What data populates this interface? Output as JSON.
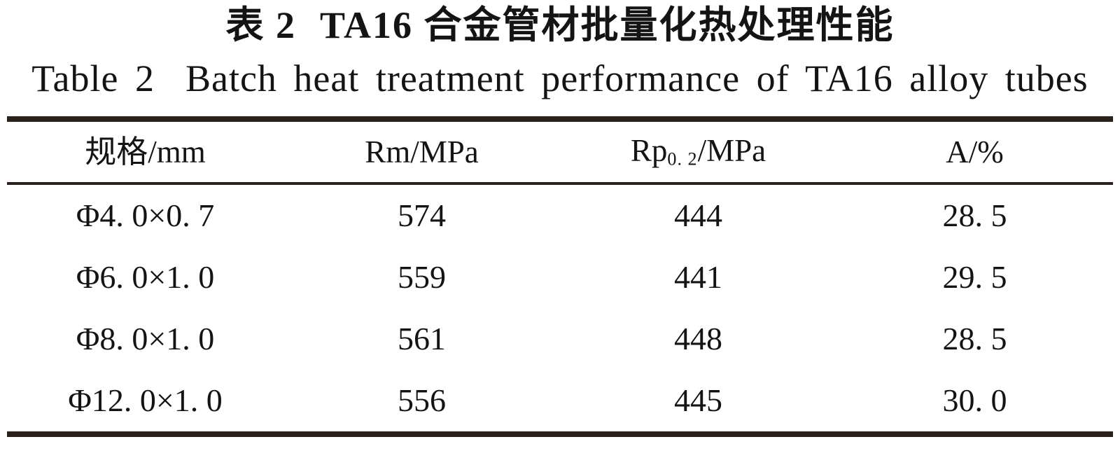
{
  "page": {
    "background": "#ffffff",
    "text_color": "#141414",
    "rule_color": "#2a211c"
  },
  "title": {
    "zh_label": "表 2",
    "zh_text": "TA16 合金管材批量化热处理性能",
    "en_label": "Table 2",
    "en_text": "Batch heat treatment performance of TA16 alloy tubes"
  },
  "table": {
    "columns": [
      {
        "key": "spec",
        "label": "规格/mm"
      },
      {
        "key": "rm",
        "label": "Rm/MPa"
      },
      {
        "key": "rp02",
        "label_pre": "Rp",
        "label_sub": "0. 2",
        "label_post": "/MPa"
      },
      {
        "key": "a",
        "label": "A/%"
      }
    ],
    "rows": [
      [
        "Φ4. 0×0. 7",
        "574",
        "444",
        "28. 5"
      ],
      [
        "Φ6. 0×1. 0",
        "559",
        "441",
        "29. 5"
      ],
      [
        "Φ8. 0×1. 0",
        "561",
        "448",
        "28. 5"
      ],
      [
        "Φ12. 0×1. 0",
        "556",
        "445",
        "30. 0"
      ]
    ]
  },
  "chart_data": {
    "type": "table",
    "title": "表2 TA16合金管材批量化热处理性能 / Table 2 Batch heat treatment performance of TA16 alloy tubes",
    "columns": [
      "规格/mm",
      "Rm/MPa",
      "Rp0.2/MPa",
      "A/%"
    ],
    "rows": [
      [
        "Φ4.0×0.7",
        574,
        444,
        28.5
      ],
      [
        "Φ6.0×1.0",
        559,
        441,
        29.5
      ],
      [
        "Φ8.0×1.0",
        561,
        448,
        28.5
      ],
      [
        "Φ12.0×1.0",
        556,
        445,
        30.0
      ]
    ]
  }
}
